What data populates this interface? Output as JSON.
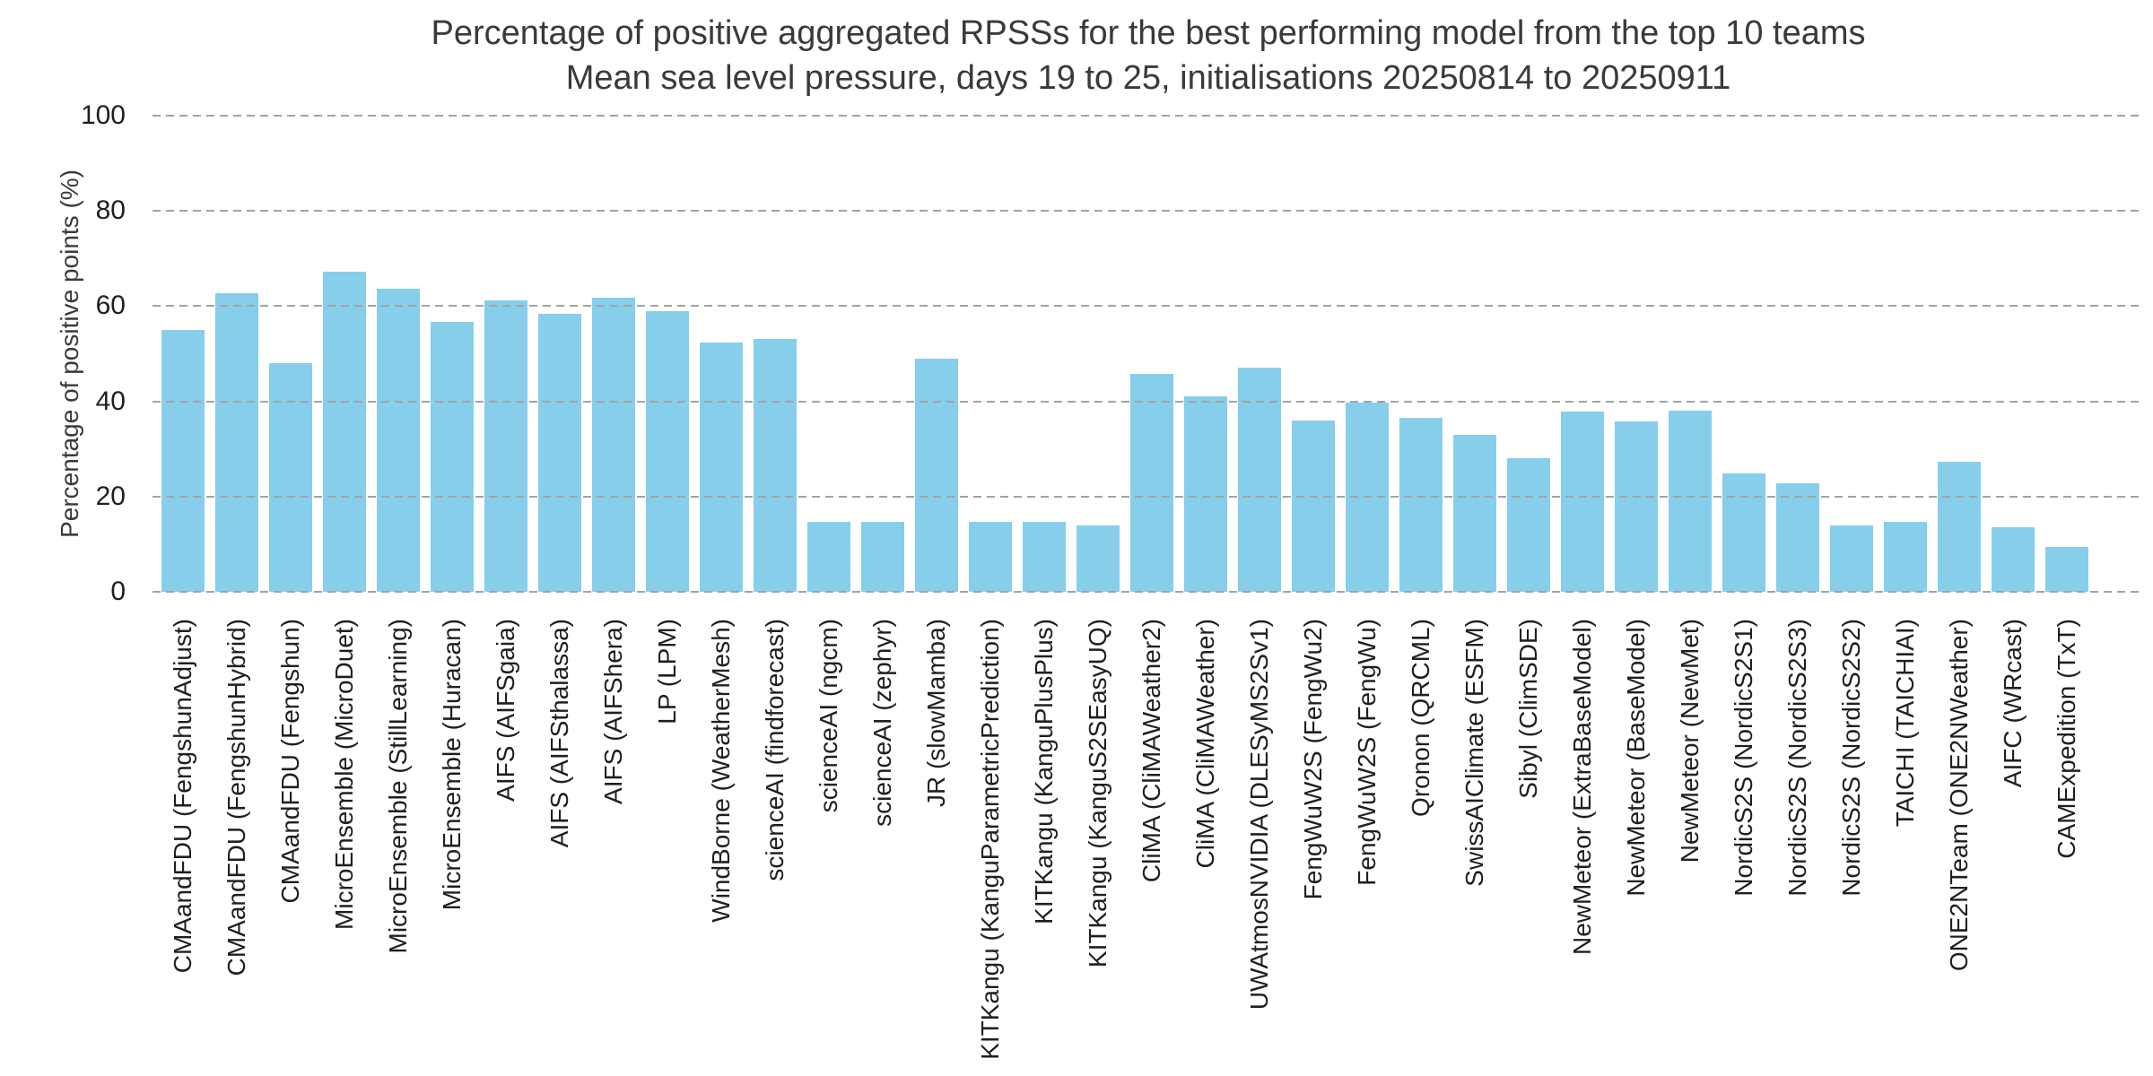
{
  "chart_data": {
    "type": "bar",
    "title": "Percentage of positive aggregated RPSSs for the best performing model from the top 10 teams",
    "subtitle": "Mean sea level pressure, days 19 to 25, initialisations 20250814 to 20250911",
    "ylabel": "Percentage of positive points (%)",
    "xlabel": "",
    "ylim": [
      0,
      100
    ],
    "yticks": [
      0,
      20,
      40,
      60,
      80,
      100
    ],
    "grid": "horizontal-dashed",
    "legend": "none",
    "bar_color": "#87CEEB",
    "gridline_color": "#a3a3a3",
    "title_color": "#3a3a3a",
    "tick_color": "#1f1f1f",
    "categories": [
      "CMAandFDU (FengshunAdjust)",
      "CMAandFDU (FengshunHybrid)",
      "CMAandFDU (Fengshun)",
      "MicroEnsemble (MicroDuet)",
      "MicroEnsemble (StillLearning)",
      "MicroEnsemble (Huracan)",
      "AIFS (AIFSgaia)",
      "AIFS (AIFSthalassa)",
      "AIFS (AIFShera)",
      "LP (LPM)",
      "WindBorne (WeatherMesh)",
      "scienceAI (findforecast)",
      "scienceAI (ngcm)",
      "scienceAI (zephyr)",
      "JR (slowMamba)",
      "KITKangu (KanguParametricPrediction)",
      "KITKangu (KanguPlusPlus)",
      "KITKangu (KanguS2SEasyUQ)",
      "CliMA (CliMAWeather2)",
      "CliMA (CliMAWeather)",
      "UWAtmosNVIDIA (DLESyMS2Sv1)",
      "FengWuW2S (FengWu2)",
      "FengWuW2S (FengWu)",
      "Qronon (QRCML)",
      "SwissAIClimate (ESFM)",
      "Sibyl (ClimSDE)",
      "NewMeteor (ExtraBaseModel)",
      "NewMeteor (BaseModel)",
      "NewMeteor (NewMet)",
      "NordicS2S (NordicS2S1)",
      "NordicS2S (NordicS2S3)",
      "NordicS2S (NordicS2S2)",
      "TAICHI (TAICHIAI)",
      "ONE2NTeam (ONE2NWeather)",
      "AIFC (WRcast)",
      "CAMExpedition (TxT)"
    ],
    "values": [
      55.0,
      62.8,
      48.0,
      67.3,
      63.7,
      56.7,
      61.2,
      58.4,
      61.8,
      59.0,
      52.3,
      53.2,
      14.6,
      14.6,
      49.0,
      14.6,
      14.6,
      13.9,
      45.7,
      41.0,
      47.0,
      36.0,
      39.7,
      36.5,
      33.0,
      28.0,
      37.8,
      35.8,
      38.1,
      24.8,
      22.7,
      13.9,
      14.6,
      27.4,
      13.5,
      9.5
    ]
  }
}
